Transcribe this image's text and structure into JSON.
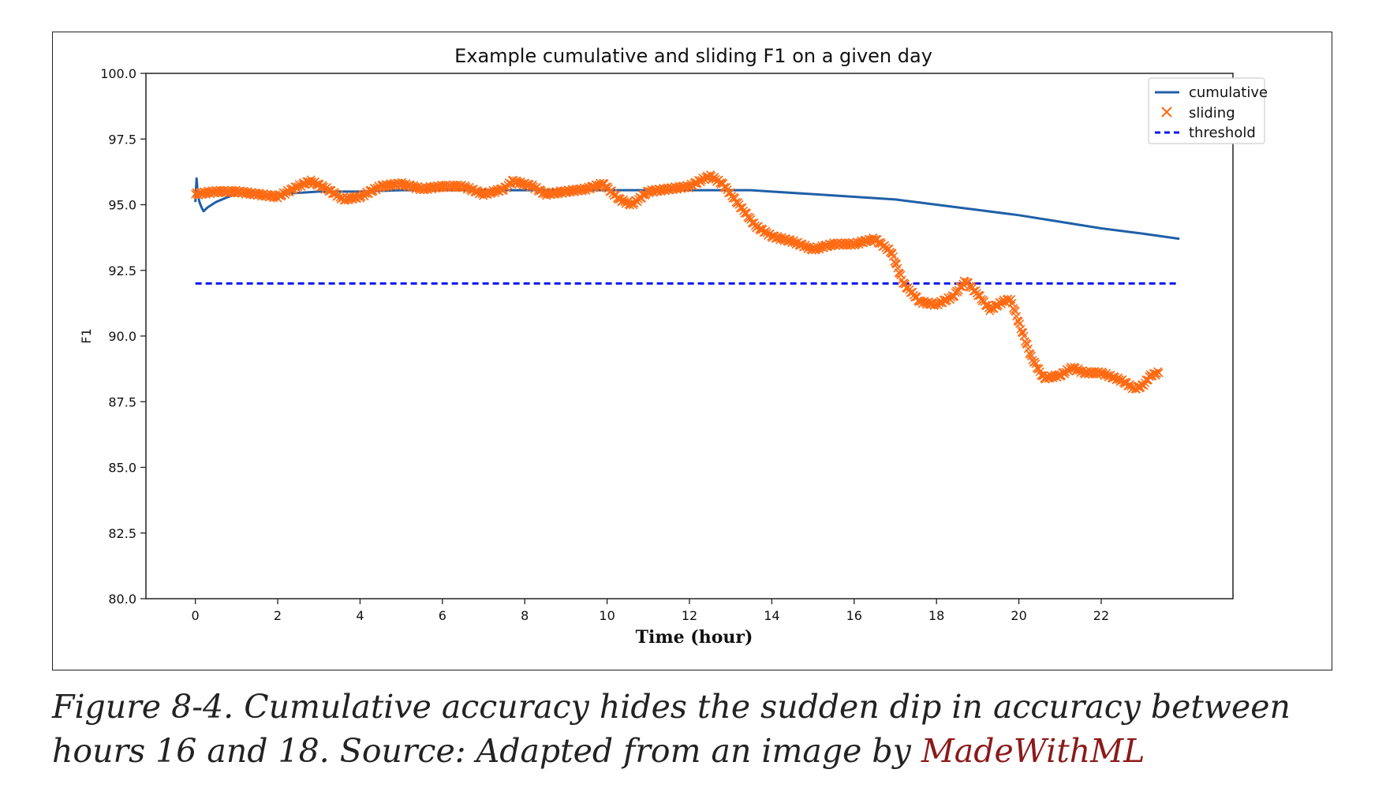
{
  "figure": {
    "caption_prefix": "Figure 8-4. Cumulative accuracy hides the sudden dip in accuracy between hours 16 and 18. Source: Adapted from an image by ",
    "caption_link": "MadeWithML"
  },
  "chart_data": {
    "type": "line",
    "title": "Example cumulative and sliding F1 on a given day",
    "xlabel": "Time (hour)",
    "ylabel": "F1",
    "xlim": [
      -1.2,
      25.2
    ],
    "ylim": [
      80.0,
      100.0
    ],
    "x_ticks": [
      0,
      2,
      4,
      6,
      8,
      10,
      12,
      14,
      16,
      18,
      20,
      22
    ],
    "x_tick_labels": [
      "0",
      "2",
      "4",
      "6",
      "8",
      "10",
      "12",
      "14",
      "16",
      "18",
      "20",
      "22"
    ],
    "y_ticks": [
      80.0,
      82.5,
      85.0,
      87.5,
      90.0,
      92.5,
      95.0,
      97.5,
      100.0
    ],
    "y_tick_labels": [
      "80.0",
      "82.5",
      "85.0",
      "87.5",
      "90.0",
      "92.5",
      "95.0",
      "97.5",
      "100.0"
    ],
    "grid": false,
    "legend_position": "top-right",
    "series": [
      {
        "name": "cumulative",
        "style": "solid",
        "color": "#1f5fa8",
        "x": [
          0,
          0.03,
          0.06,
          0.1,
          0.15,
          0.2,
          0.3,
          0.5,
          0.8,
          1,
          2,
          3,
          4,
          5,
          6,
          7,
          8,
          9,
          10,
          11,
          12,
          13,
          13.5,
          14,
          15,
          16,
          17,
          18,
          19,
          20,
          21,
          22,
          23,
          23.9
        ],
        "y": [
          95.1,
          96.0,
          95.4,
          95.1,
          94.9,
          94.75,
          94.9,
          95.1,
          95.3,
          95.4,
          95.4,
          95.5,
          95.5,
          95.55,
          95.55,
          95.55,
          95.55,
          95.55,
          95.55,
          95.55,
          95.55,
          95.55,
          95.55,
          95.5,
          95.4,
          95.3,
          95.2,
          95.0,
          94.8,
          94.6,
          94.35,
          94.1,
          93.9,
          93.7
        ]
      },
      {
        "name": "sliding",
        "style": "x-markers",
        "color": "#ff6a13",
        "x": [
          0,
          0.5,
          1,
          1.5,
          2,
          2.5,
          2.8,
          3.2,
          3.6,
          4,
          4.5,
          5,
          5.5,
          6,
          6.5,
          7,
          7.5,
          7.7,
          8.2,
          8.5,
          9,
          9.5,
          9.9,
          10.3,
          10.6,
          11,
          11.5,
          12,
          12.5,
          12.8,
          13.2,
          13.6,
          14,
          14.5,
          15,
          15.5,
          16,
          16.5,
          16.9,
          17.2,
          17.6,
          18,
          18.4,
          18.7,
          19,
          19.3,
          19.6,
          19.8,
          20,
          20.3,
          20.6,
          21,
          21.3,
          21.6,
          22,
          22.5,
          22.8,
          23,
          23.2,
          23.4
        ],
        "y": [
          95.4,
          95.5,
          95.5,
          95.4,
          95.3,
          95.7,
          95.9,
          95.6,
          95.2,
          95.3,
          95.7,
          95.8,
          95.6,
          95.7,
          95.7,
          95.4,
          95.6,
          95.9,
          95.7,
          95.4,
          95.5,
          95.6,
          95.8,
          95.2,
          95.0,
          95.5,
          95.6,
          95.7,
          96.1,
          95.8,
          95.0,
          94.2,
          93.8,
          93.6,
          93.3,
          93.5,
          93.5,
          93.7,
          93.2,
          92.0,
          91.3,
          91.2,
          91.5,
          92.1,
          91.6,
          91.0,
          91.3,
          91.4,
          90.5,
          89.2,
          88.4,
          88.5,
          88.8,
          88.6,
          88.6,
          88.3,
          88.0,
          88.1,
          88.5,
          88.6
        ]
      },
      {
        "name": "threshold",
        "style": "dashed",
        "color": "#0a17f0",
        "x": [
          0,
          23.9
        ],
        "y": [
          92.0,
          92.0
        ]
      }
    ]
  }
}
